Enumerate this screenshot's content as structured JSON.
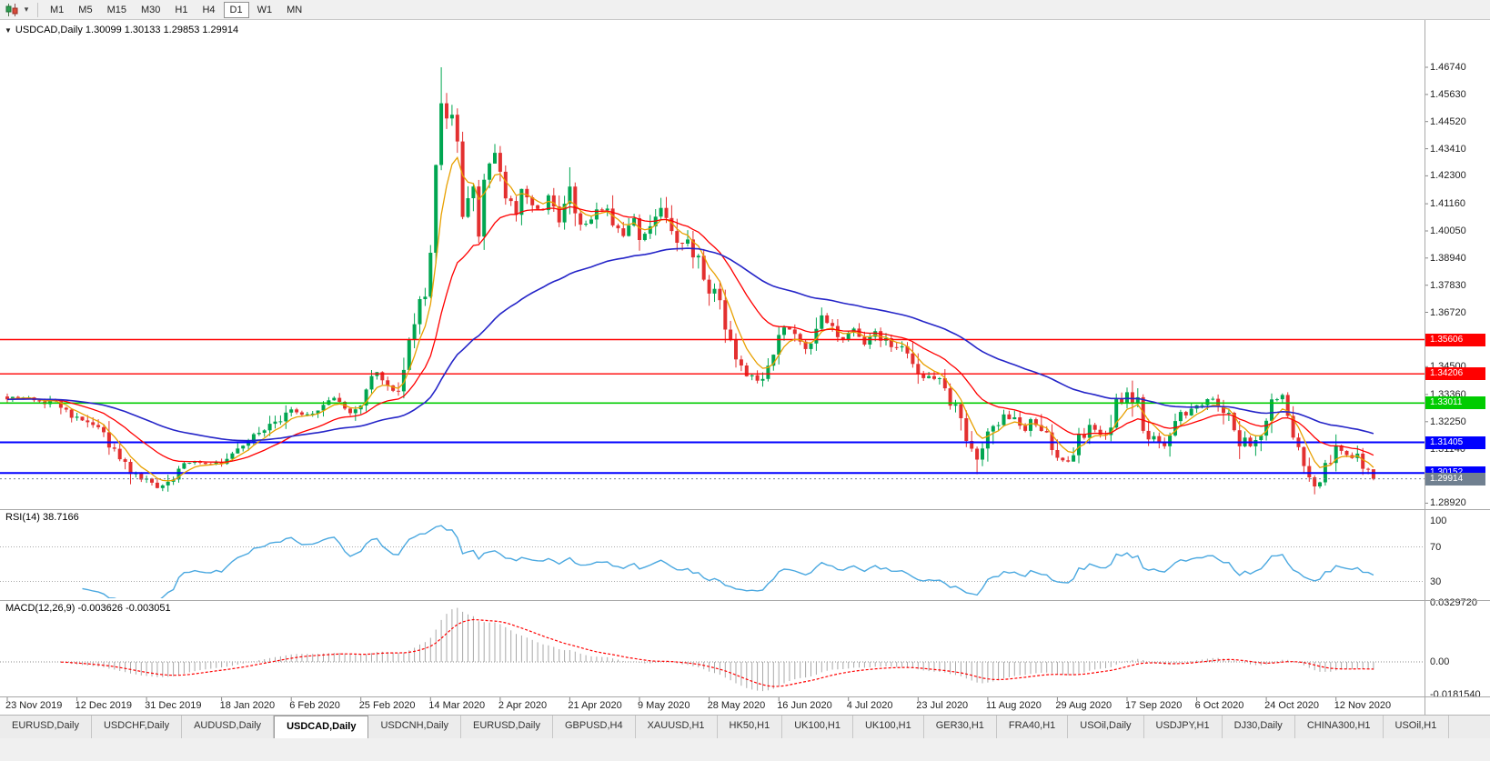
{
  "icons": {
    "caret": "▾",
    "title_marker": "▼"
  },
  "toolbar": {
    "timeframes": [
      "M1",
      "M5",
      "M15",
      "M30",
      "H1",
      "H4",
      "D1",
      "W1",
      "MN"
    ],
    "active_timeframe": "D1"
  },
  "chart": {
    "title": "USDCAD,Daily 1.30099 1.30133 1.29853 1.29914",
    "symbol": "USDCAD,Daily",
    "ohlc": {
      "open": "1.30099",
      "high": "1.30133",
      "low": "1.29853",
      "close": "1.29914"
    },
    "rsi_label": "RSI(14) 38.7166",
    "macd_label": "MACD(12,26,9) -0.003626 -0.003051"
  },
  "price_axis": {
    "ticks": [
      "1.46740",
      "1.45630",
      "1.44520",
      "1.43410",
      "1.42300",
      "1.41160",
      "1.40050",
      "1.38940",
      "1.37830",
      "1.36720",
      "1.34500",
      "1.33360",
      "1.32250",
      "1.31140",
      "1.28920"
    ],
    "levels": [
      {
        "label": "1.35606",
        "price": 1.35606,
        "color": "#FF0000",
        "width": 1.4
      },
      {
        "label": "1.34206",
        "price": 1.34206,
        "color": "#FF0000",
        "width": 1.4
      },
      {
        "label": "1.33011",
        "price": 1.33011,
        "color": "#00CC00",
        "width": 1.6
      },
      {
        "label": "1.31405",
        "price": 1.31405,
        "color": "#0000FF",
        "width": 2
      },
      {
        "label": "1.30152",
        "price": 1.30152,
        "color": "#0000FF",
        "width": 2
      }
    ],
    "current": {
      "label": "1.29914",
      "price": 1.29914,
      "color": "#708090"
    }
  },
  "rsi_axis": [
    {
      "label": "100",
      "value": 100
    },
    {
      "label": "70",
      "value": 70
    },
    {
      "label": "30",
      "value": 30
    }
  ],
  "macd_axis": [
    {
      "label": "0.0329720",
      "value": 0.032972
    },
    {
      "label": "0.00",
      "value": 0
    },
    {
      "label": "-0.0181540",
      "value": -0.018154
    }
  ],
  "dates": [
    {
      "label": "23 Nov 2019",
      "bar": 0
    },
    {
      "label": "12 Dec 2019",
      "bar": 13
    },
    {
      "label": "31 Dec 2019",
      "bar": 26
    },
    {
      "label": "18 Jan 2020",
      "bar": 40
    },
    {
      "label": "6 Feb 2020",
      "bar": 53
    },
    {
      "label": "25 Feb 2020",
      "bar": 66
    },
    {
      "label": "14 Mar 2020",
      "bar": 79
    },
    {
      "label": "2 Apr 2020",
      "bar": 92
    },
    {
      "label": "21 Apr 2020",
      "bar": 105
    },
    {
      "label": "9 May 2020",
      "bar": 118
    },
    {
      "label": "28 May 2020",
      "bar": 131
    },
    {
      "label": "16 Jun 2020",
      "bar": 144
    },
    {
      "label": "4 Jul 2020",
      "bar": 157
    },
    {
      "label": "23 Jul 2020",
      "bar": 170
    },
    {
      "label": "11 Aug 2020",
      "bar": 183
    },
    {
      "label": "29 Aug 2020",
      "bar": 196
    },
    {
      "label": "17 Sep 2020",
      "bar": 209
    },
    {
      "label": "6 Oct 2020",
      "bar": 222
    },
    {
      "label": "24 Oct 2020",
      "bar": 235
    },
    {
      "label": "12 Nov 2020",
      "bar": 248
    }
  ],
  "tabs": {
    "active_index": 3,
    "items": [
      "EURUSD,Daily",
      "USDCHF,Daily",
      "AUDUSD,Daily",
      "USDCAD,Daily",
      "USDCNH,Daily",
      "EURUSD,Daily",
      "GBPUSD,H4",
      "XAUUSD,H1",
      "HK50,H1",
      "UK100,H1",
      "UK100,H1",
      "GER30,H1",
      "FRA40,H1",
      "USOil,Daily",
      "USDJPY,H1",
      "DJ30,Daily",
      "CHINA300,H1",
      "USOil,H1"
    ]
  },
  "colors": {
    "up": "#00A651",
    "down": "#E33030",
    "ma_fast": "#E8A000",
    "ma_mid": "#FF0000",
    "ma_slow": "#2525C8",
    "rsi": "#4AA8E0",
    "macd_hist": "#A8A8A8",
    "macd_signal": "#FF0000",
    "axis_text": "#222222",
    "grid": "#AAAAAA"
  },
  "chart_data": {
    "type": "candlestick",
    "symbol": "USDCAD",
    "timeframe": "Daily",
    "bars": 256,
    "last_close": 1.29914,
    "close_anchors": [
      [
        0,
        1.331
      ],
      [
        4,
        1.333
      ],
      [
        9,
        1.3295
      ],
      [
        13,
        1.3245
      ],
      [
        16,
        1.3225
      ],
      [
        18,
        1.316
      ],
      [
        21,
        1.3085
      ],
      [
        23,
        1.303
      ],
      [
        26,
        1.2985
      ],
      [
        28,
        1.2962
      ],
      [
        31,
        1.3005
      ],
      [
        33,
        1.3045
      ],
      [
        36,
        1.3062
      ],
      [
        40,
        1.3052
      ],
      [
        43,
        1.3098
      ],
      [
        46,
        1.3155
      ],
      [
        50,
        1.3215
      ],
      [
        53,
        1.3278
      ],
      [
        56,
        1.3252
      ],
      [
        59,
        1.329
      ],
      [
        61,
        1.3312
      ],
      [
        64,
        1.3262
      ],
      [
        66,
        1.332
      ],
      [
        69,
        1.3438
      ],
      [
        71,
        1.3382
      ],
      [
        73,
        1.333
      ],
      [
        74,
        1.3418
      ],
      [
        76,
        1.364
      ],
      [
        78,
        1.3755
      ],
      [
        79,
        1.393
      ],
      [
        80,
        1.424
      ],
      [
        81,
        1.45
      ],
      [
        83,
        1.447
      ],
      [
        84,
        1.434
      ],
      [
        85,
        1.409
      ],
      [
        87,
        1.416
      ],
      [
        88,
        1.401
      ],
      [
        89,
        1.419
      ],
      [
        91,
        1.431
      ],
      [
        93,
        1.415
      ],
      [
        95,
        1.408
      ],
      [
        96,
        1.4175
      ],
      [
        98,
        1.4115
      ],
      [
        100,
        1.4085
      ],
      [
        101,
        1.4155
      ],
      [
        103,
        1.405
      ],
      [
        105,
        1.4195
      ],
      [
        106,
        1.41
      ],
      [
        108,
        1.4025
      ],
      [
        110,
        1.4075
      ],
      [
        112,
        1.4105
      ],
      [
        113,
        1.403
      ],
      [
        115,
        1.3985
      ],
      [
        117,
        1.4065
      ],
      [
        118,
        1.3965
      ],
      [
        120,
        1.4015
      ],
      [
        122,
        1.4105
      ],
      [
        123,
        1.406
      ],
      [
        125,
        1.3985
      ],
      [
        127,
        1.3945
      ],
      [
        129,
        1.3875
      ],
      [
        131,
        1.3772
      ],
      [
        133,
        1.374
      ],
      [
        134,
        1.3625
      ],
      [
        136,
        1.3485
      ],
      [
        138,
        1.3425
      ],
      [
        140,
        1.3392
      ],
      [
        142,
        1.3445
      ],
      [
        144,
        1.3558
      ],
      [
        145,
        1.3618
      ],
      [
        147,
        1.3578
      ],
      [
        149,
        1.3532
      ],
      [
        151,
        1.3608
      ],
      [
        152,
        1.3648
      ],
      [
        154,
        1.3598
      ],
      [
        156,
        1.3562
      ],
      [
        158,
        1.3605
      ],
      [
        160,
        1.3542
      ],
      [
        162,
        1.3598
      ],
      [
        163,
        1.3572
      ],
      [
        165,
        1.3522
      ],
      [
        167,
        1.3548
      ],
      [
        168,
        1.3482
      ],
      [
        170,
        1.3422
      ],
      [
        171,
        1.3392
      ],
      [
        173,
        1.3412
      ],
      [
        175,
        1.3352
      ],
      [
        177,
        1.3292
      ],
      [
        178,
        1.3228
      ],
      [
        179,
        1.3122
      ],
      [
        181,
        1.3062
      ],
      [
        182,
        1.3112
      ],
      [
        183,
        1.3152
      ],
      [
        185,
        1.3222
      ],
      [
        186,
        1.3258
      ],
      [
        188,
        1.3222
      ],
      [
        190,
        1.3182
      ],
      [
        191,
        1.3242
      ],
      [
        193,
        1.3192
      ],
      [
        195,
        1.3132
      ],
      [
        196,
        1.3092
      ],
      [
        198,
        1.3062
      ],
      [
        199,
        1.3112
      ],
      [
        201,
        1.3172
      ],
      [
        202,
        1.3202
      ],
      [
        204,
        1.3162
      ],
      [
        206,
        1.3232
      ],
      [
        207,
        1.3302
      ],
      [
        209,
        1.3338
      ],
      [
        211,
        1.3292
      ],
      [
        212,
        1.3202
      ],
      [
        214,
        1.3152
      ],
      [
        216,
        1.3122
      ],
      [
        217,
        1.3182
      ],
      [
        219,
        1.3242
      ],
      [
        222,
        1.3278
      ],
      [
        224,
        1.3308
      ],
      [
        225,
        1.3328
      ],
      [
        227,
        1.3282
      ],
      [
        229,
        1.3202
      ],
      [
        230,
        1.3152
      ],
      [
        232,
        1.3132
      ],
      [
        234,
        1.3158
      ],
      [
        236,
        1.3298
      ],
      [
        238,
        1.3318
      ],
      [
        239,
        1.3242
      ],
      [
        241,
        1.3122
      ],
      [
        243,
        1.3012
      ],
      [
        244,
        1.2962
      ],
      [
        246,
        1.3022
      ],
      [
        248,
        1.3122
      ],
      [
        250,
        1.3082
      ],
      [
        252,
        1.3092
      ],
      [
        253,
        1.3048
      ],
      [
        254,
        1.301
      ],
      [
        255,
        1.29914
      ]
    ],
    "spikes": [
      {
        "bar": 28,
        "low": 1.2952
      },
      {
        "bar": 81,
        "high": 1.4674
      },
      {
        "bar": 105,
        "high": 1.4265
      },
      {
        "bar": 122,
        "high": 1.414
      },
      {
        "bar": 181,
        "low": 1.301
      },
      {
        "bar": 209,
        "high": 1.336
      },
      {
        "bar": 236,
        "high": 1.334
      },
      {
        "bar": 244,
        "low": 1.2928
      },
      {
        "bar": 248,
        "high": 1.3172
      }
    ],
    "indicators": {
      "rsi": {
        "period": 14,
        "last": 38.7166
      },
      "macd": {
        "fast": 12,
        "slow": 26,
        "signal": 9,
        "last_main": -0.003626,
        "last_signal": -0.003051
      }
    },
    "horizontal_levels": [
      1.35606,
      1.34206,
      1.33011,
      1.31405,
      1.30152
    ]
  }
}
